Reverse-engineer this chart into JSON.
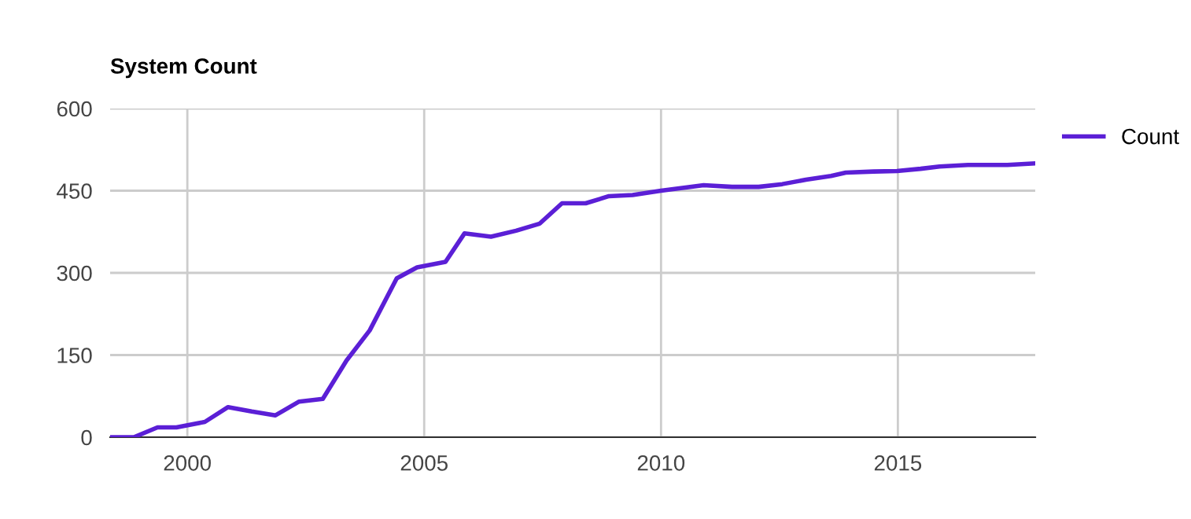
{
  "chart_data": {
    "type": "line",
    "title": "System Count",
    "x": [
      1998.37,
      1998.87,
      1999.37,
      1999.77,
      2000.37,
      2000.86,
      2001.36,
      2001.86,
      2002.36,
      2002.86,
      2003.36,
      2003.85,
      2004.42,
      2004.85,
      2005.45,
      2005.85,
      2006.41,
      2006.94,
      2007.44,
      2007.91,
      2008.41,
      2008.9,
      2009.4,
      2010.0,
      2010.9,
      2011.5,
      2012.06,
      2012.56,
      2013.06,
      2013.59,
      2013.9,
      2014.49,
      2014.98,
      2015.48,
      2015.88,
      2016.48,
      2017.31,
      2017.9
    ],
    "series": [
      {
        "name": "Count",
        "color": "#5b1fd6",
        "values": [
          0,
          0,
          18,
          18,
          28,
          55,
          47,
          40,
          65,
          70,
          140,
          195,
          290,
          310,
          320,
          372,
          366,
          377,
          390,
          427,
          427,
          440,
          442,
          450,
          460,
          457,
          457,
          462,
          470,
          477,
          483,
          485,
          486,
          490,
          494,
          497,
          497,
          500
        ]
      }
    ],
    "xlim": [
      1998.37,
      2017.9
    ],
    "xticks": [
      2000,
      2005,
      2010,
      2015
    ],
    "ylim": [
      0,
      600
    ],
    "yticks": [
      0,
      150,
      300,
      450,
      600
    ],
    "grid": true,
    "legend": "top right"
  }
}
